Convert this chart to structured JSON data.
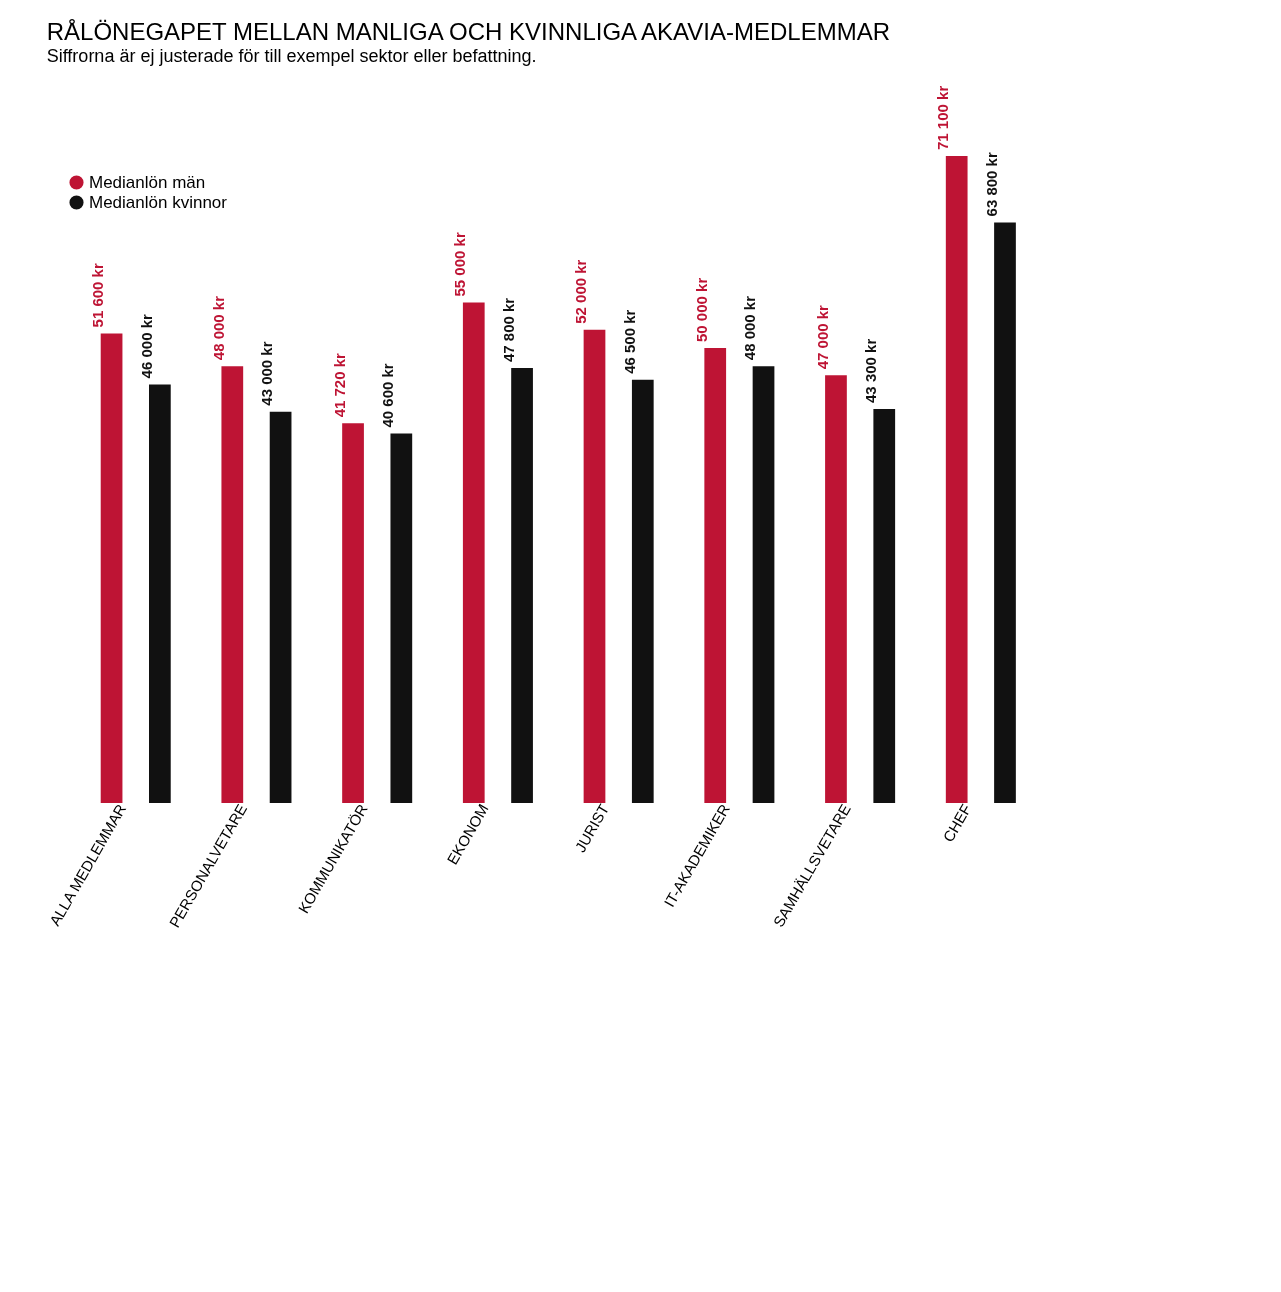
{
  "chart_data": {
    "type": "bar",
    "title": "RÅLÖNEGAPET MELLAN MANLIGA OCH KVINNLIGA AKAVIA-MEDLEMMAR",
    "subtitle": "Siffrorna är ej justerade för till exempel sektor eller befattning.",
    "categories": [
      "ALLA MEDLEMMAR",
      "PERSONALVETARE",
      "KOMMUNIKATÖR",
      "EKONOM",
      "JURIST",
      "IT-AKADEMIKER",
      "SAMHÄLLSVETARE",
      "CHEF"
    ],
    "series": [
      {
        "name": "Medianlön män",
        "color": "#be1434",
        "values": [
          51600,
          48000,
          41720,
          55000,
          52000,
          50000,
          47000,
          71100
        ],
        "value_labels": [
          "51 600 kr",
          "48 000 kr",
          "41 720 kr",
          "55 000 kr",
          "52 000 kr",
          "50 000 kr",
          "47 000 kr",
          "71 100 kr"
        ]
      },
      {
        "name": "Medianlön kvinnor",
        "color": "#111111",
        "values": [
          46000,
          43000,
          40600,
          47800,
          46500,
          48000,
          43300,
          63800
        ],
        "value_labels": [
          "46 000 kr",
          "43 000 kr",
          "40 600 kr",
          "47 800 kr",
          "46 500 kr",
          "48 000 kr",
          "43 300 kr",
          "63 800 kr"
        ]
      }
    ],
    "legend": "top left"
  }
}
